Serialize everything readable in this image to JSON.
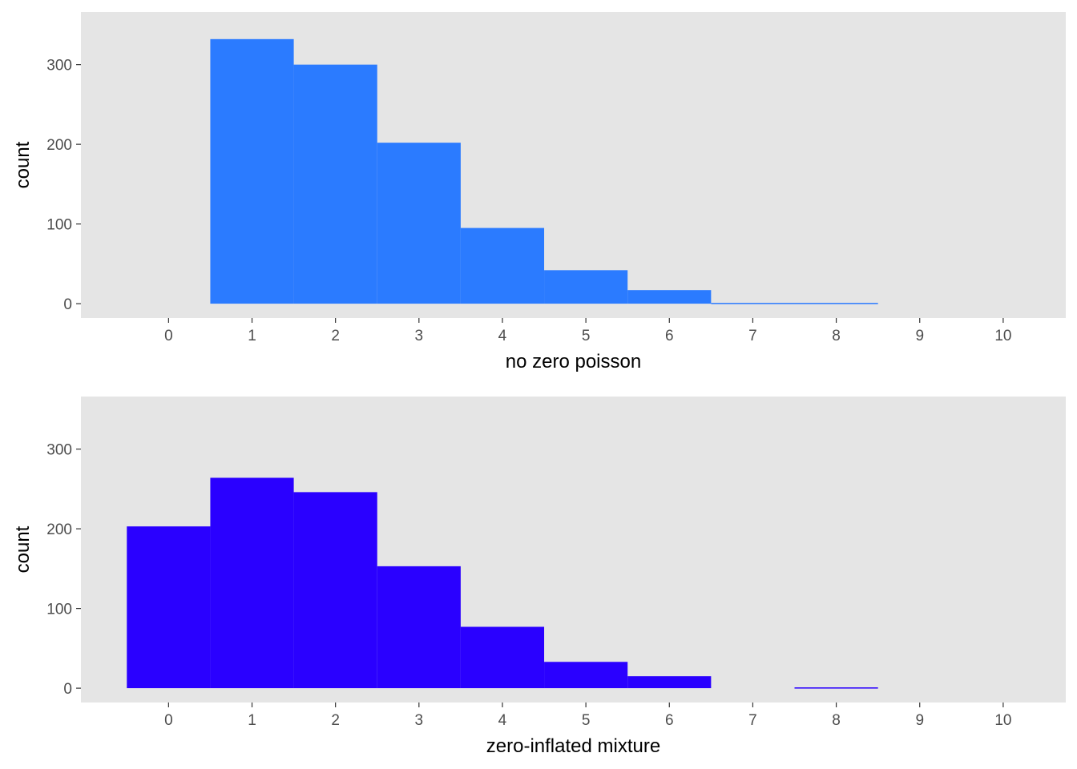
{
  "chart_data": [
    {
      "type": "bar",
      "xlabel": "no zero poisson",
      "ylabel": "count",
      "xlim": [
        -1.05,
        10.75
      ],
      "ylim": [
        -18,
        366
      ],
      "x_ticks": [
        0,
        1,
        2,
        3,
        4,
        5,
        6,
        7,
        8,
        9,
        10
      ],
      "y_ticks": [
        0,
        100,
        200,
        300
      ],
      "x_tick_labels": [
        "0",
        "1",
        "2",
        "3",
        "4",
        "5",
        "6",
        "7",
        "8",
        "9",
        "10"
      ],
      "y_tick_labels": [
        "0",
        "100",
        "200",
        "300"
      ],
      "categories": [
        1,
        2,
        3,
        4,
        5,
        6,
        7,
        8
      ],
      "values": [
        332,
        300,
        202,
        95,
        42,
        17,
        1,
        1
      ],
      "bin_width": 1,
      "grid": false,
      "panel_color": "#e5e5e5",
      "bar_color": "#2b7bff"
    },
    {
      "type": "bar",
      "xlabel": "zero-inflated mixture",
      "ylabel": "count",
      "xlim": [
        -1.05,
        10.75
      ],
      "ylim": [
        -18,
        366
      ],
      "x_ticks": [
        0,
        1,
        2,
        3,
        4,
        5,
        6,
        7,
        8,
        9,
        10
      ],
      "y_ticks": [
        0,
        100,
        200,
        300
      ],
      "x_tick_labels": [
        "0",
        "1",
        "2",
        "3",
        "4",
        "5",
        "6",
        "7",
        "8",
        "9",
        "10"
      ],
      "y_tick_labels": [
        "0",
        "100",
        "200",
        "300"
      ],
      "categories": [
        0,
        1,
        2,
        3,
        4,
        5,
        6,
        7,
        8
      ],
      "values": [
        203,
        264,
        246,
        153,
        77,
        33,
        15,
        0,
        1
      ],
      "bin_width": 1,
      "grid": false,
      "panel_color": "#e5e5e5",
      "bar_color": "#2a00ff"
    }
  ]
}
